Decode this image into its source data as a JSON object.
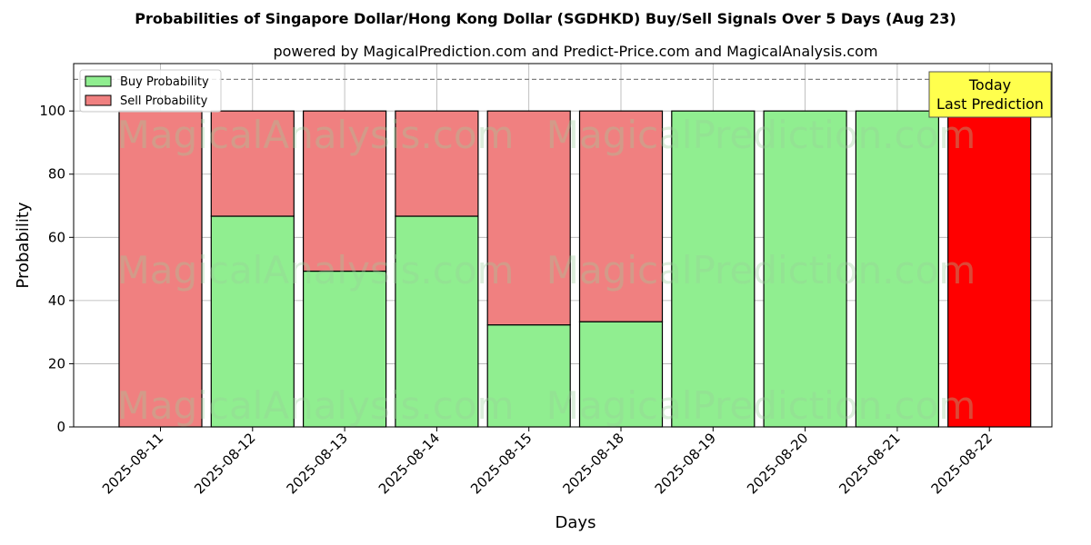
{
  "chart_data": {
    "type": "bar",
    "stacked": true,
    "title": "Probabilities of Singapore Dollar/Hong Kong Dollar (SGDHKD) Buy/Sell Signals Over 5 Days (Aug 23)",
    "subtitle": "powered by MagicalPrediction.com and Predict-Price.com and MagicalAnalysis.com",
    "xlabel": "Days",
    "ylabel": "Probability",
    "ylim": [
      0,
      115
    ],
    "yticks": [
      0,
      20,
      40,
      60,
      80,
      100
    ],
    "grid": true,
    "legend_position": "top-left",
    "reference_line": 110,
    "categories": [
      "2025-08-11",
      "2025-08-12",
      "2025-08-13",
      "2025-08-14",
      "2025-08-15",
      "2025-08-18",
      "2025-08-19",
      "2025-08-20",
      "2025-08-21",
      "2025-08-22"
    ],
    "series": [
      {
        "name": "Buy Probability",
        "color": "#90ee90",
        "values": [
          0,
          66.7,
          49.3,
          66.7,
          32.3,
          33.3,
          100,
          100,
          100,
          0
        ]
      },
      {
        "name": "Sell Probability",
        "color": "#f08080",
        "values": [
          100,
          33.3,
          50.7,
          33.3,
          67.7,
          66.7,
          0,
          0,
          0,
          100
        ]
      }
    ],
    "highlight": {
      "index": 9,
      "color": "#ff0000"
    },
    "annotation": {
      "lines": [
        "Today",
        "Last Prediction"
      ],
      "background": "#ffff4d"
    },
    "watermarks": [
      "MagicalAnalysis.com",
      "MagicalPrediction.com"
    ]
  }
}
